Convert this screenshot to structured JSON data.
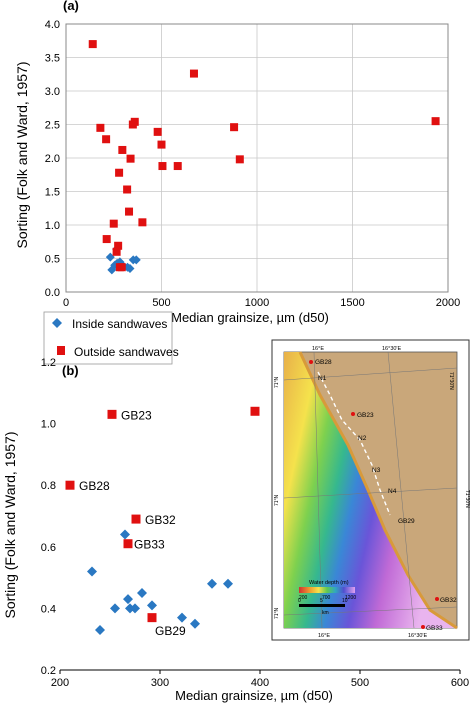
{
  "colors": {
    "inside": "#2a78c2",
    "outside": "#e01010",
    "grid": "#c8c8c8",
    "axis": "#000000"
  },
  "chart_data": [
    {
      "panel_label": "(a)",
      "type": "scatter",
      "xlabel": "Median grainsize, µm  (d50)",
      "ylabel": "Sorting (Folk and Ward, 1957)",
      "xlim": [
        0,
        2000
      ],
      "ylim": [
        0,
        4
      ],
      "xticks": [
        0,
        500,
        1000,
        1500,
        2000
      ],
      "yticks": [
        0.0,
        0.5,
        1.0,
        1.5,
        2.0,
        2.5,
        3.0,
        3.5,
        4.0
      ],
      "grid": true,
      "legend_position": "below-left",
      "series": [
        {
          "name": "Inside sandwaves",
          "marker": "diamond",
          "color": "#2a78c2",
          "points": [
            [
              232,
              0.52
            ],
            [
              240,
              0.33
            ],
            [
              255,
              0.4
            ],
            [
              265,
              0.64
            ],
            [
              268,
              0.43
            ],
            [
              270,
              0.4
            ],
            [
              275,
              0.4
            ],
            [
              282,
              0.45
            ],
            [
              292,
              0.41
            ],
            [
              322,
              0.37
            ],
            [
              335,
              0.35
            ],
            [
              352,
              0.48
            ],
            [
              368,
              0.48
            ]
          ]
        },
        {
          "name": "Outside sandwaves",
          "marker": "square",
          "color": "#e01010",
          "points": [
            [
              140,
              3.7
            ],
            [
              180,
              2.45
            ],
            [
              210,
              2.28
            ],
            [
              213,
              0.79
            ],
            [
              250,
              1.02
            ],
            [
              265,
              0.6
            ],
            [
              273,
              0.69
            ],
            [
              278,
              1.78
            ],
            [
              282,
              0.37
            ],
            [
              292,
              0.37
            ],
            [
              295,
              2.12
            ],
            [
              320,
              1.53
            ],
            [
              330,
              1.2
            ],
            [
              338,
              1.99
            ],
            [
              350,
              2.5
            ],
            [
              360,
              2.54
            ],
            [
              400,
              1.04
            ],
            [
              480,
              2.39
            ],
            [
              500,
              2.2
            ],
            [
              505,
              1.88
            ],
            [
              585,
              1.88
            ],
            [
              670,
              3.26
            ],
            [
              880,
              2.46
            ],
            [
              910,
              1.98
            ],
            [
              1935,
              2.55
            ]
          ]
        }
      ],
      "legend": [
        {
          "label": "Inside sandwaves",
          "marker": "diamond"
        },
        {
          "label": "Outside sandwaves",
          "marker": "square"
        }
      ]
    },
    {
      "panel_label": "(b)",
      "type": "scatter",
      "xlabel": "Median grainsize, µm  (d50)",
      "ylabel": "Sorting (Folk and Ward, 1957)",
      "xlim": [
        200,
        600
      ],
      "ylim": [
        0.2,
        1.2
      ],
      "xticks": [
        200,
        300,
        400,
        500,
        600
      ],
      "yticks": [
        0.2,
        0.4,
        0.6,
        0.8,
        1.0,
        1.2
      ],
      "grid": false,
      "series": [
        {
          "name": "Inside sandwaves",
          "marker": "diamond",
          "color": "#2a78c2",
          "points": [
            [
              232,
              0.52
            ],
            [
              240,
              0.33
            ],
            [
              255,
              0.4
            ],
            [
              265,
              0.64
            ],
            [
              268,
              0.43
            ],
            [
              270,
              0.4
            ],
            [
              275,
              0.4
            ],
            [
              282,
              0.45
            ],
            [
              292,
              0.41
            ],
            [
              322,
              0.37
            ],
            [
              335,
              0.35
            ],
            [
              352,
              0.48
            ],
            [
              368,
              0.48
            ]
          ]
        },
        {
          "name": "Outside sandwaves",
          "marker": "square",
          "color": "#e01010",
          "points": [
            [
              210,
              0.8
            ],
            [
              252,
              1.03
            ],
            [
              276,
              0.69
            ],
            [
              268,
              0.61
            ],
            [
              292,
              0.37
            ],
            [
              395,
              1.04
            ]
          ]
        }
      ],
      "annotations": [
        {
          "text": "GB23",
          "x": 256,
          "y": 1.03
        },
        {
          "text": "GB28",
          "x": 214,
          "y": 0.8
        },
        {
          "text": "GB32",
          "x": 280,
          "y": 0.69
        },
        {
          "text": "GB33",
          "x": 269,
          "y": 0.61
        },
        {
          "text": "GB29",
          "x": 290,
          "y": 0.33
        }
      ]
    }
  ],
  "inset_map": {
    "lat_labels": [
      "71°N",
      "71°30'N",
      "71°N",
      "71°30'N",
      "71°N"
    ],
    "top_labels": [
      "16°E",
      "16°30'E"
    ],
    "bottom_labels": [
      "16°E",
      "16°30'E"
    ],
    "stations": [
      "GB28",
      "GB23",
      "GB32",
      "GB33"
    ],
    "wave_labels": [
      "N1",
      "N2",
      "N3",
      "N4",
      "GB29"
    ],
    "legend_title": "Water depth (m)",
    "depth_ticks": [
      "200",
      "700",
      "1200"
    ],
    "scale_ticks": [
      "0",
      "5",
      "10"
    ],
    "scale_unit": "km"
  }
}
